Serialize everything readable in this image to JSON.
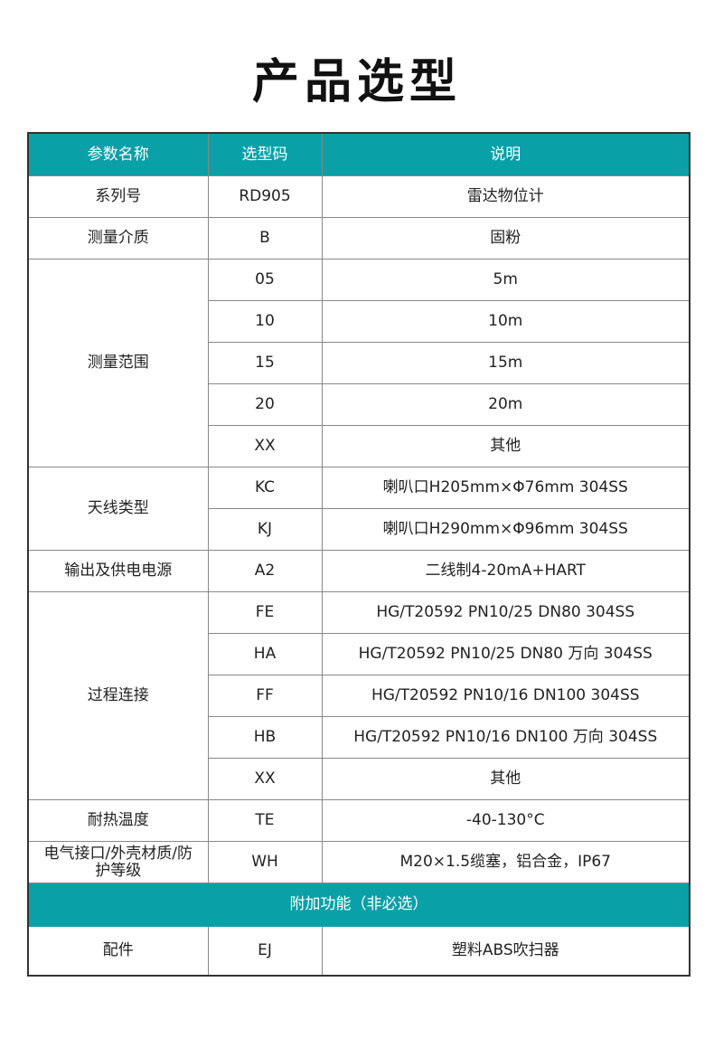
{
  "title": "产品选型",
  "colors": {
    "header": "#0aa0a8"
  },
  "headers": [
    "参数名称",
    "选型码",
    "说明"
  ],
  "groups": [
    {
      "name": "系列号",
      "rows": [
        {
          "code": "RD905",
          "desc": "雷达物位计"
        }
      ]
    },
    {
      "name": "测量介质",
      "rows": [
        {
          "code": "B",
          "desc": "固粉"
        }
      ]
    },
    {
      "name": "测量范围",
      "rows": [
        {
          "code": "05",
          "desc": "5m"
        },
        {
          "code": "10",
          "desc": "10m"
        },
        {
          "code": "15",
          "desc": "15m"
        },
        {
          "code": "20",
          "desc": "20m"
        },
        {
          "code": "XX",
          "desc": "其他"
        }
      ]
    },
    {
      "name": "天线类型",
      "rows": [
        {
          "code": "KC",
          "desc": "喇叭口H205mm×Φ76mm 304SS"
        },
        {
          "code": "KJ",
          "desc": "喇叭口H290mm×Φ96mm 304SS"
        }
      ]
    },
    {
      "name": "输出及供电电源",
      "rows": [
        {
          "code": "A2",
          "desc": "二线制4-20mA+HART"
        }
      ]
    },
    {
      "name": "过程连接",
      "rows": [
        {
          "code": "FE",
          "desc": "HG/T20592 PN10/25 DN80 304SS"
        },
        {
          "code": "HA",
          "desc": "HG/T20592 PN10/25 DN80 万向 304SS"
        },
        {
          "code": "FF",
          "desc": "HG/T20592 PN10/16 DN100 304SS"
        },
        {
          "code": "HB",
          "desc": "HG/T20592 PN10/16 DN100 万向 304SS"
        },
        {
          "code": "XX",
          "desc": "其他"
        }
      ]
    },
    {
      "name": "耐热温度",
      "rows": [
        {
          "code": "TE",
          "desc": "-40-130°C"
        }
      ]
    },
    {
      "name": "电气接口/外壳材质/防护等级",
      "rows": [
        {
          "code": "WH",
          "desc": "M20×1.5缆塞，铝合金，IP67"
        }
      ]
    }
  ],
  "section": "附加功能（非必选）",
  "extra": {
    "name": "配件",
    "code": "EJ",
    "desc": "塑料ABS吹扫器"
  }
}
